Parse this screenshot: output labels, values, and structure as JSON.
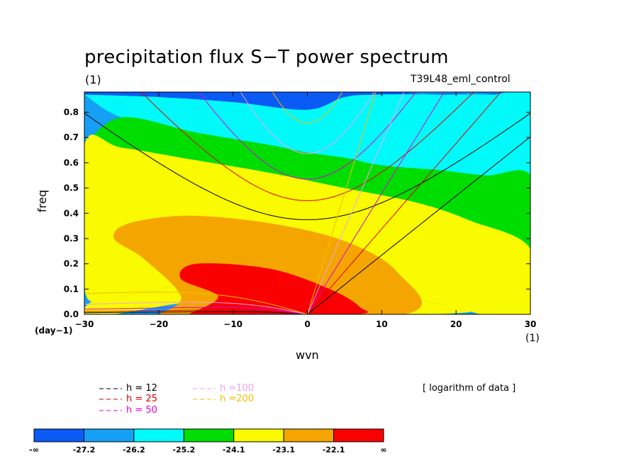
{
  "title": "precipitation flux S−T power spectrum",
  "subtitle_left": "(1)",
  "subtitle_right": "T39L48_eml_control",
  "note": "[ logarithm of data ]",
  "chart_data": {
    "type": "contour",
    "xlabel": "wvn",
    "ylabel": "freq",
    "x_unit": "(1)",
    "y_unit": "(day−1)",
    "xlim": [
      -30,
      30
    ],
    "ylim": [
      0,
      0.88
    ],
    "x_ticks": [
      -30,
      -20,
      -10,
      0,
      10,
      20,
      30
    ],
    "y_ticks": [
      0.0,
      0.1,
      0.2,
      0.3,
      0.4,
      0.5,
      0.6,
      0.7,
      0.8
    ],
    "x_tick_labels": [
      "−30",
      "−20",
      "−10",
      "0",
      "10",
      "20",
      "30"
    ],
    "y_tick_labels": [
      "0.0",
      "0.1",
      "0.2",
      "0.3",
      "0.4",
      "0.5",
      "0.6",
      "0.7",
      "0.8"
    ],
    "fill_levels": [
      "-∞",
      "-27.2",
      "-26.2",
      "-25.2",
      "-24.1",
      "-23.1",
      "-22.1",
      "∞"
    ],
    "fill_colors": [
      "#0a5af5",
      "#15a0f5",
      "#00fafa",
      "#00dd00",
      "#fafa00",
      "#f5a500",
      "#fa0000"
    ],
    "contour_bands": [
      {
        "level": "-26.2",
        "points": [
          [
            -30,
            0.87
          ],
          [
            -20,
            0.86
          ],
          [
            -10,
            0.84
          ],
          [
            0,
            0.81
          ],
          [
            5,
            0.86
          ],
          [
            10,
            0.87
          ],
          [
            30,
            0.87
          ],
          [
            30,
            0.8
          ],
          [
            25,
            0.87
          ],
          [
            18,
            0.87
          ],
          [
            14,
            0.88
          ],
          [
            30,
            0.88
          ],
          [
            30,
            0.9
          ],
          [
            -30,
            0.9
          ]
        ]
      },
      {
        "level": "-25.2",
        "points": [
          [
            -30,
            0.87
          ],
          [
            -25,
            0.78
          ],
          [
            -15,
            0.72
          ],
          [
            -5,
            0.67
          ],
          [
            0,
            0.64
          ],
          [
            5,
            0.62
          ],
          [
            10,
            0.59
          ],
          [
            18,
            0.57
          ],
          [
            24,
            0.55
          ],
          [
            30,
            0.55
          ],
          [
            30,
            0.87
          ],
          [
            25,
            0.87
          ],
          [
            18,
            0.87
          ],
          [
            10,
            0.87
          ],
          [
            5,
            0.86
          ],
          [
            0,
            0.81
          ],
          [
            -10,
            0.84
          ],
          [
            -20,
            0.86
          ]
        ]
      },
      {
        "level": "-24.1",
        "points": [
          [
            -30,
            0.67
          ],
          [
            -25,
            0.66
          ],
          [
            -15,
            0.61
          ],
          [
            -5,
            0.56
          ],
          [
            5,
            0.5
          ],
          [
            15,
            0.44
          ],
          [
            22,
            0.37
          ],
          [
            30,
            0.26
          ],
          [
            30,
            0.55
          ],
          [
            24,
            0.55
          ],
          [
            18,
            0.57
          ],
          [
            10,
            0.59
          ],
          [
            5,
            0.62
          ],
          [
            0,
            0.64
          ],
          [
            -5,
            0.67
          ],
          [
            -15,
            0.72
          ],
          [
            -25,
            0.78
          ]
        ]
      },
      {
        "level": "-23.1",
        "points": [
          [
            -30,
            0.1
          ],
          [
            -29,
            0.05
          ],
          [
            -25,
            0.07
          ],
          [
            -20,
            0.1
          ],
          [
            -13,
            0.14
          ],
          [
            -5,
            0.13
          ],
          [
            10,
            0.08
          ],
          [
            18,
            0.04
          ],
          [
            22,
            0.01
          ],
          [
            24,
            0.0
          ],
          [
            30,
            0.0
          ],
          [
            30,
            0.26
          ],
          [
            22,
            0.37
          ],
          [
            15,
            0.44
          ],
          [
            5,
            0.5
          ],
          [
            -5,
            0.56
          ],
          [
            -15,
            0.61
          ],
          [
            -25,
            0.66
          ],
          [
            -30,
            0.67
          ]
        ]
      },
      {
        "level": "-22.1",
        "points": [
          [
            -26,
            0.0
          ],
          [
            -22,
            0.02
          ],
          [
            -18,
            0.04
          ],
          [
            -12,
            0.06
          ],
          [
            -2,
            0.06
          ],
          [
            5,
            0.05
          ],
          [
            10,
            0.03
          ],
          [
            13,
            0.0
          ],
          [
            22,
            0.01
          ],
          [
            18,
            0.04
          ],
          [
            10,
            0.08
          ],
          [
            -5,
            0.13
          ],
          [
            -13,
            0.14
          ],
          [
            -20,
            0.1
          ],
          [
            -25,
            0.07
          ],
          [
            -29,
            0.05
          ],
          [
            -30,
            0.0
          ]
        ]
      },
      {
        "level": "-22.1b",
        "points": [
          [
            -20,
            0.0
          ],
          [
            -17,
            0.07
          ],
          [
            -22,
            0.22
          ],
          [
            -26,
            0.3
          ],
          [
            -24,
            0.36
          ],
          [
            -16,
            0.39
          ],
          [
            -5,
            0.36
          ],
          [
            5,
            0.29
          ],
          [
            12,
            0.17
          ],
          [
            13,
            0.0
          ]
        ]
      },
      {
        "level": "max",
        "points": [
          [
            -16,
            0.0
          ],
          [
            -12,
            0.07
          ],
          [
            -17,
            0.14
          ],
          [
            -15,
            0.2
          ],
          [
            -5,
            0.18
          ],
          [
            3,
            0.1
          ],
          [
            7,
            0.03
          ],
          [
            6,
            0.0
          ]
        ]
      }
    ],
    "dispersion_curves": [
      {
        "name": "h = 12",
        "color": "#000000"
      },
      {
        "name": "h = 25",
        "color": "#dd0000"
      },
      {
        "name": "h = 50",
        "color": "#dd00dd"
      },
      {
        "name": "h =100",
        "color": "#f0a0f0"
      },
      {
        "name": "h =200",
        "color": "#f0c000"
      }
    ]
  }
}
